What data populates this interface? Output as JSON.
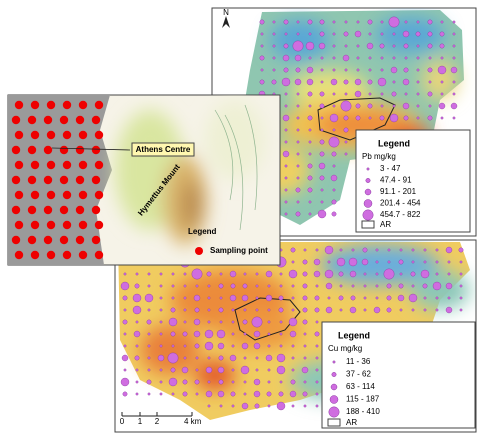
{
  "inset": {
    "labels": {
      "athens": "Athens Centre",
      "hymettus": "Hymettus Mount"
    },
    "legend": {
      "title": "Legend",
      "item": "Sampling point"
    }
  },
  "pb_map": {
    "north": "N",
    "legend": {
      "title": "Legend",
      "unit": "Pb mg/kg",
      "classes": [
        "3 - 47",
        "47.4 - 91",
        "91.1 - 201",
        "201.4 - 454",
        "454.7 - 822"
      ],
      "boundary": "AR"
    }
  },
  "cu_map": {
    "legend": {
      "title": "Legend",
      "unit": "Cu mg/kg",
      "classes": [
        "11 - 36",
        "37 - 62",
        "63 - 114",
        "115 - 187",
        "188 - 410"
      ],
      "boundary": "AR"
    },
    "scale": [
      "0",
      "1",
      "2",
      "4 km"
    ]
  }
}
